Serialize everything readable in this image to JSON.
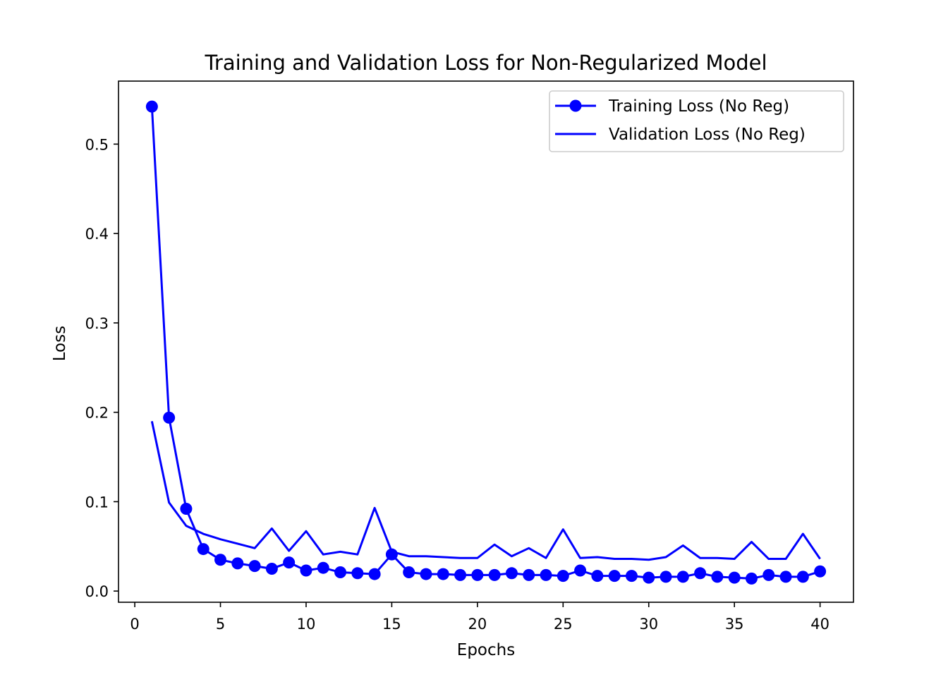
{
  "chart_data": {
    "type": "line",
    "title": "Training and Validation Loss for Non-Regularized Model",
    "xlabel": "Epochs",
    "ylabel": "Loss",
    "xlim": [
      -0.95,
      41.95
    ],
    "ylim": [
      -0.0125,
      0.5705
    ],
    "x_ticks": [
      0,
      5,
      10,
      15,
      20,
      25,
      30,
      35,
      40
    ],
    "y_ticks": [
      0.0,
      0.1,
      0.2,
      0.3,
      0.4,
      0.5
    ],
    "x_tick_labels": [
      "0",
      "5",
      "10",
      "15",
      "20",
      "25",
      "30",
      "35",
      "40"
    ],
    "y_tick_labels": [
      "0.0",
      "0.1",
      "0.2",
      "0.3",
      "0.4",
      "0.5"
    ],
    "grid": false,
    "legend_position": "top-right",
    "x": [
      1,
      2,
      3,
      4,
      5,
      6,
      7,
      8,
      9,
      10,
      11,
      12,
      13,
      14,
      15,
      16,
      17,
      18,
      19,
      20,
      21,
      22,
      23,
      24,
      25,
      26,
      27,
      28,
      29,
      30,
      31,
      32,
      33,
      34,
      35,
      36,
      37,
      38,
      39,
      40
    ],
    "series": [
      {
        "name": "Training Loss (No Reg)",
        "color": "#0000ff",
        "marker": "circle",
        "values": [
          0.542,
          0.194,
          0.092,
          0.047,
          0.035,
          0.031,
          0.028,
          0.025,
          0.032,
          0.023,
          0.026,
          0.021,
          0.02,
          0.019,
          0.041,
          0.021,
          0.019,
          0.019,
          0.018,
          0.018,
          0.018,
          0.02,
          0.018,
          0.018,
          0.017,
          0.023,
          0.017,
          0.017,
          0.017,
          0.015,
          0.016,
          0.016,
          0.02,
          0.016,
          0.015,
          0.014,
          0.018,
          0.016,
          0.016,
          0.022
        ]
      },
      {
        "name": "Validation Loss (No Reg)",
        "color": "#0000ff",
        "marker": "none",
        "values": [
          0.19,
          0.099,
          0.073,
          0.064,
          0.058,
          0.053,
          0.048,
          0.07,
          0.045,
          0.067,
          0.041,
          0.044,
          0.041,
          0.093,
          0.044,
          0.039,
          0.039,
          0.038,
          0.037,
          0.037,
          0.052,
          0.039,
          0.048,
          0.037,
          0.069,
          0.037,
          0.038,
          0.036,
          0.036,
          0.035,
          0.038,
          0.051,
          0.037,
          0.037,
          0.036,
          0.055,
          0.036,
          0.036,
          0.064,
          0.036
        ]
      }
    ]
  }
}
